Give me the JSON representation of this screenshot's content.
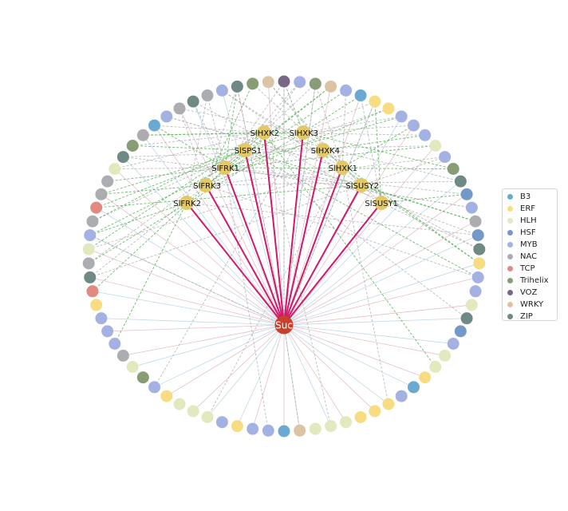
{
  "hub": {
    "label": "Suc",
    "color": "#c8402a"
  },
  "targets": [
    {
      "label": "SlHXK2"
    },
    {
      "label": "SlHXK3"
    },
    {
      "label": "SlSPS1"
    },
    {
      "label": "SlHXK4"
    },
    {
      "label": "SlFRK1"
    },
    {
      "label": "SlHXK1"
    },
    {
      "label": "SlFRK3"
    },
    {
      "label": "SlSUSY2"
    },
    {
      "label": "SlFRK2"
    },
    {
      "label": "SlSUSY1"
    }
  ],
  "target_color": "#e3c868",
  "legend": [
    {
      "name": "B3",
      "color": "#6aaad2"
    },
    {
      "name": "ERF",
      "color": "#f8dc82"
    },
    {
      "name": "HLH",
      "color": "#e3e9bf"
    },
    {
      "name": "HSF",
      "color": "#7499c9"
    },
    {
      "name": "MYB",
      "color": "#a3b2e3"
    },
    {
      "name": "NAC",
      "color": "#abadb0"
    },
    {
      "name": "TCP",
      "color": "#e28a80"
    },
    {
      "name": "Trihelix",
      "color": "#889c76"
    },
    {
      "name": "VOZ",
      "color": "#786885"
    },
    {
      "name": "WRKY",
      "color": "#dbc4a4"
    },
    {
      "name": "ZIP",
      "color": "#6f8984"
    }
  ],
  "edge_colors": {
    "hub_to_target": "#d0196c",
    "tf_to_hub_a": "#a9cbe0",
    "tf_to_hub_b": "#dcaab8",
    "tf_to_target_a": "#56b056",
    "tf_to_target_b": "#b1b1b1"
  },
  "ring_nodes": [
    "VOZ",
    "MYB",
    "Trihelix",
    "WRKY",
    "MYB",
    "B3",
    "ERF",
    "ERF",
    "MYB",
    "MYB",
    "MYB",
    "HLH",
    "MYB",
    "Trihelix",
    "ZIP",
    "HSF",
    "MYB",
    "NAC",
    "HSF",
    "ZIP",
    "ERF",
    "MYB",
    "MYB",
    "HLH",
    "ZIP",
    "HSF",
    "MYB",
    "HLH",
    "HLH",
    "ERF",
    "B3",
    "MYB",
    "ERF",
    "ERF",
    "ERF",
    "HLH",
    "HLH",
    "HLH",
    "WRKY",
    "B3",
    "MYB",
    "MYB",
    "ERF",
    "MYB",
    "HLH",
    "HLH",
    "HLH",
    "ERF",
    "MYB",
    "Trihelix",
    "HLH",
    "NAC",
    "MYB",
    "MYB",
    "MYB",
    "ERF",
    "TCP",
    "ZIP",
    "NAC",
    "HLH",
    "MYB",
    "NAC",
    "TCP",
    "NAC",
    "NAC",
    "HLH",
    "ZIP",
    "Trihelix",
    "NAC",
    "B3",
    "MYB",
    "NAC",
    "ZIP",
    "NAC",
    "MYB",
    "ZIP",
    "Trihelix",
    "WRKY"
  ]
}
